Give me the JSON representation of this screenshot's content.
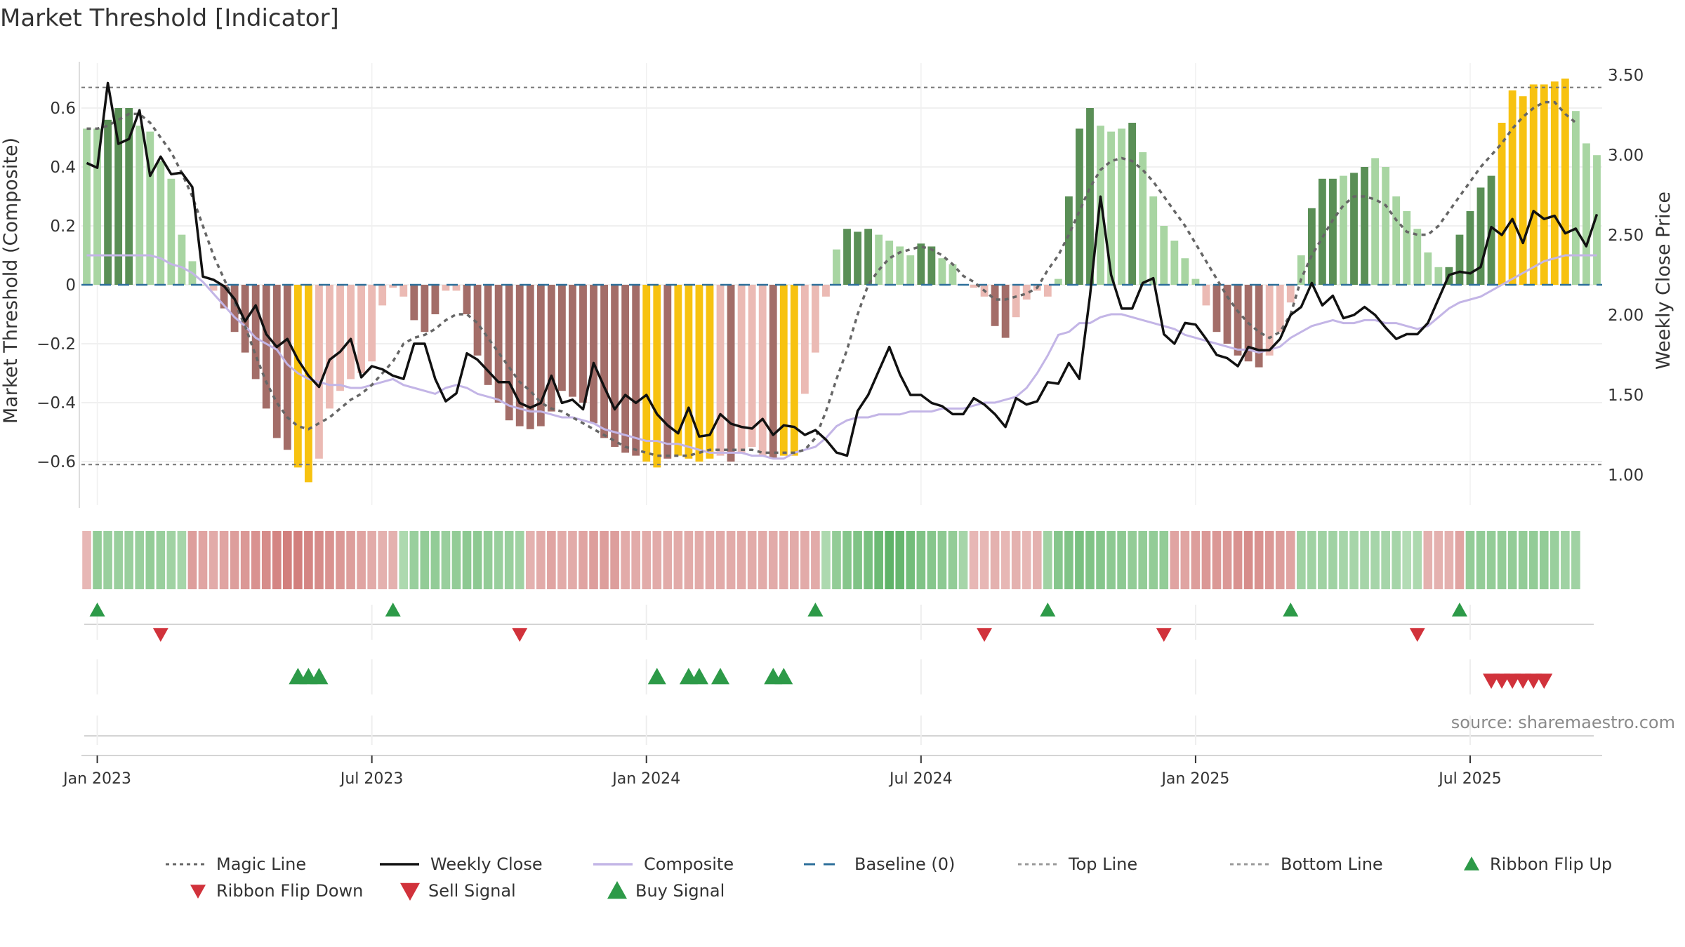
{
  "chart_data": {
    "type": "bar",
    "title": "Market Threshold [Indicator]",
    "ylabel": "Market Threshold (Composite)",
    "ylabel_right": "Weekly Close Price",
    "ylim": [
      -0.78,
      0.76
    ],
    "ylim_right": [
      0.85,
      3.6
    ],
    "yticks": [
      -0.6,
      -0.4,
      -0.2,
      0,
      0.2,
      0.4,
      0.6
    ],
    "ytick_labels": [
      "−0.6",
      "−0.4",
      "−0.2",
      "0",
      "0.2",
      "0.4",
      "0.6"
    ],
    "yticks_right": [
      1.0,
      1.5,
      2.0,
      2.5,
      3.0,
      3.5
    ],
    "ytick_labels_right": [
      "1.00",
      "1.50",
      "2.00",
      "2.50",
      "3.00",
      "3.50"
    ],
    "xtick_labels": [
      "Jan 2023",
      "Jul 2023",
      "Jan 2024",
      "Jul 2024",
      "Jan 2025",
      "Jul 2025"
    ],
    "xtick_weeks": [
      1,
      27,
      53,
      79,
      105,
      131
    ],
    "top_line": 0.67,
    "bottom_line": -0.61,
    "colors": {
      "bull_light": "#a8d5a2",
      "bull_dark": "#5a8f56",
      "bear_light": "#ebbab4",
      "bear_dark": "#a36d68",
      "extreme": "#f7c210",
      "weekly_close": "#111111",
      "composite": "#c3b5e6",
      "magic": "#666666",
      "baseline": "#2d6f9a",
      "signal_up": "#2d9a48",
      "signal_down": "#d1323b"
    },
    "composite_bars": [
      0.53,
      0.53,
      0.56,
      0.6,
      0.6,
      0.54,
      0.52,
      0.42,
      0.36,
      0.17,
      0.08,
      0,
      -0.02,
      -0.08,
      -0.16,
      -0.23,
      -0.32,
      -0.42,
      -0.52,
      -0.56,
      -0.62,
      -0.67,
      -0.59,
      -0.42,
      -0.36,
      -0.32,
      -0.3,
      -0.26,
      -0.07,
      -0.01,
      -0.04,
      -0.12,
      -0.16,
      -0.1,
      -0.02,
      -0.02,
      -0.1,
      -0.24,
      -0.34,
      -0.4,
      -0.46,
      -0.48,
      -0.49,
      -0.48,
      -0.43,
      -0.36,
      -0.38,
      -0.4,
      -0.47,
      -0.52,
      -0.55,
      -0.57,
      -0.58,
      -0.6,
      -0.62,
      -0.59,
      -0.58,
      -0.59,
      -0.6,
      -0.59,
      -0.58,
      -0.6,
      -0.57,
      -0.55,
      -0.58,
      -0.59,
      -0.58,
      -0.58,
      -0.37,
      -0.23,
      -0.04,
      0.12,
      0.19,
      0.18,
      0.19,
      0.17,
      0.15,
      0.13,
      0.1,
      0.14,
      0.13,
      0.09,
      0.07,
      0,
      -0.01,
      -0.04,
      -0.14,
      -0.18,
      -0.11,
      -0.05,
      -0.02,
      -0.04,
      0.02,
      0.3,
      0.53,
      0.6,
      0.54,
      0.52,
      0.53,
      0.55,
      0.45,
      0.3,
      0.2,
      0.15,
      0.09,
      0.02,
      -0.07,
      -0.16,
      -0.2,
      -0.24,
      -0.26,
      -0.28,
      -0.24,
      -0.16,
      -0.06,
      0.1,
      0.26,
      0.36,
      0.36,
      0.37,
      0.38,
      0.4,
      0.43,
      0.4,
      0.3,
      0.25,
      0.19,
      0.11,
      0.06,
      0.06,
      0.17,
      0.25,
      0.33,
      0.37,
      0.55,
      0.66,
      0.64,
      0.68,
      0.68,
      0.69,
      0.7,
      0.59,
      0.48,
      0.44
    ],
    "bar_classes": [
      "bl",
      "bl",
      "bd",
      "bd",
      "bd",
      "bl",
      "bl",
      "bl",
      "bl",
      "bl",
      "bl",
      "bl",
      "rl",
      "rd",
      "rd",
      "rd",
      "rd",
      "rd",
      "rd",
      "rd",
      "ex",
      "ex",
      "rl",
      "rl",
      "rl",
      "rl",
      "rl",
      "rl",
      "rl",
      "rl",
      "rl",
      "rd",
      "rd",
      "rd",
      "rl",
      "rl",
      "rd",
      "rd",
      "rd",
      "rd",
      "rd",
      "rd",
      "rd",
      "rd",
      "rd",
      "rd",
      "rd",
      "rd",
      "rd",
      "rd",
      "rd",
      "rd",
      "rd",
      "ex",
      "ex",
      "rd",
      "ex",
      "ex",
      "ex",
      "ex",
      "rl",
      "rd",
      "rl",
      "rl",
      "rl",
      "rd",
      "ex",
      "ex",
      "rl",
      "rl",
      "rl",
      "bl",
      "bd",
      "bd",
      "bd",
      "bl",
      "bl",
      "bl",
      "bl",
      "bd",
      "bd",
      "bl",
      "bl",
      "rl",
      "rl",
      "rl",
      "rd",
      "rd",
      "rl",
      "rl",
      "rl",
      "rl",
      "bl",
      "bd",
      "bd",
      "bd",
      "bl",
      "bl",
      "bl",
      "bd",
      "bl",
      "bl",
      "bl",
      "bl",
      "bl",
      "bl",
      "rl",
      "rd",
      "rd",
      "rd",
      "rd",
      "rd",
      "rl",
      "rl",
      "rl",
      "bl",
      "bd",
      "bd",
      "bd",
      "bl",
      "bd",
      "bd",
      "bl",
      "bl",
      "bl",
      "bl",
      "bl",
      "bl",
      "bl",
      "bd",
      "bd",
      "bd",
      "bd",
      "bd",
      "ex",
      "ex",
      "ex",
      "ex",
      "ex",
      "ex",
      "ex",
      "bl",
      "bl",
      "bl"
    ],
    "weekly_close": [
      2.95,
      2.92,
      3.45,
      3.07,
      3.1,
      3.28,
      2.87,
      2.99,
      2.88,
      2.89,
      2.8,
      2.24,
      2.22,
      2.18,
      2.1,
      1.96,
      2.06,
      1.88,
      1.8,
      1.85,
      1.72,
      1.62,
      1.55,
      1.72,
      1.77,
      1.85,
      1.61,
      1.68,
      1.66,
      1.62,
      1.6,
      1.82,
      1.82,
      1.6,
      1.46,
      1.51,
      1.76,
      1.72,
      1.65,
      1.58,
      1.58,
      1.45,
      1.42,
      1.45,
      1.62,
      1.45,
      1.47,
      1.41,
      1.7,
      1.55,
      1.41,
      1.5,
      1.45,
      1.5,
      1.38,
      1.31,
      1.26,
      1.42,
      1.24,
      1.25,
      1.38,
      1.32,
      1.3,
      1.29,
      1.35,
      1.25,
      1.31,
      1.3,
      1.25,
      1.28,
      1.22,
      1.14,
      1.12,
      1.4,
      1.5,
      1.65,
      1.8,
      1.63,
      1.5,
      1.5,
      1.45,
      1.43,
      1.38,
      1.38,
      1.48,
      1.44,
      1.38,
      1.3,
      1.48,
      1.44,
      1.46,
      1.58,
      1.57,
      1.7,
      1.6,
      2.12,
      2.74,
      2.25,
      2.04,
      2.04,
      2.2,
      2.23,
      1.88,
      1.82,
      1.95,
      1.94,
      1.85,
      1.75,
      1.73,
      1.68,
      1.8,
      1.78,
      1.78,
      1.85,
      2.0,
      2.05,
      2.2,
      2.06,
      2.12,
      1.98,
      2.0,
      2.05,
      2.0,
      1.92,
      1.85,
      1.88,
      1.88,
      1.95,
      2.1,
      2.25,
      2.27,
      2.26,
      2.3,
      2.55,
      2.5,
      2.6,
      2.45,
      2.65,
      2.6,
      2.62,
      2.51,
      2.54,
      2.43,
      2.63
    ],
    "composite_line": [
      0.1,
      0.1,
      0.1,
      0.1,
      0.1,
      0.1,
      0.1,
      0.09,
      0.07,
      0.06,
      0.04,
      0.01,
      -0.03,
      -0.07,
      -0.11,
      -0.14,
      -0.18,
      -0.2,
      -0.22,
      -0.27,
      -0.3,
      -0.32,
      -0.33,
      -0.34,
      -0.34,
      -0.35,
      -0.35,
      -0.34,
      -0.33,
      -0.32,
      -0.34,
      -0.35,
      -0.36,
      -0.37,
      -0.35,
      -0.34,
      -0.35,
      -0.37,
      -0.38,
      -0.39,
      -0.41,
      -0.42,
      -0.43,
      -0.43,
      -0.44,
      -0.45,
      -0.45,
      -0.46,
      -0.47,
      -0.49,
      -0.5,
      -0.51,
      -0.52,
      -0.53,
      -0.53,
      -0.54,
      -0.54,
      -0.55,
      -0.56,
      -0.57,
      -0.57,
      -0.57,
      -0.57,
      -0.58,
      -0.58,
      -0.59,
      -0.59,
      -0.57,
      -0.56,
      -0.55,
      -0.52,
      -0.48,
      -0.46,
      -0.45,
      -0.45,
      -0.44,
      -0.44,
      -0.44,
      -0.43,
      -0.43,
      -0.43,
      -0.42,
      -0.42,
      -0.42,
      -0.41,
      -0.4,
      -0.4,
      -0.39,
      -0.38,
      -0.35,
      -0.3,
      -0.24,
      -0.17,
      -0.16,
      -0.13,
      -0.13,
      -0.11,
      -0.1,
      -0.1,
      -0.11,
      -0.12,
      -0.13,
      -0.14,
      -0.15,
      -0.17,
      -0.18,
      -0.19,
      -0.2,
      -0.21,
      -0.22,
      -0.22,
      -0.23,
      -0.22,
      -0.21,
      -0.18,
      -0.16,
      -0.14,
      -0.13,
      -0.12,
      -0.13,
      -0.13,
      -0.12,
      -0.12,
      -0.13,
      -0.13,
      -0.14,
      -0.15,
      -0.14,
      -0.11,
      -0.08,
      -0.06,
      -0.05,
      -0.04,
      -0.02,
      0,
      0.02,
      0.04,
      0.06,
      0.08,
      0.09,
      0.1,
      0.1,
      0.1,
      0.1
    ],
    "magic_line": [
      0.53,
      0.53,
      0.54,
      0.56,
      0.58,
      0.58,
      0.55,
      0.5,
      0.45,
      0.38,
      0.3,
      0.2,
      0.1,
      0.02,
      -0.06,
      -0.14,
      -0.24,
      -0.33,
      -0.4,
      -0.45,
      -0.48,
      -0.49,
      -0.47,
      -0.45,
      -0.42,
      -0.39,
      -0.37,
      -0.34,
      -0.3,
      -0.26,
      -0.2,
      -0.18,
      -0.17,
      -0.15,
      -0.12,
      -0.1,
      -0.1,
      -0.13,
      -0.18,
      -0.23,
      -0.28,
      -0.33,
      -0.36,
      -0.4,
      -0.42,
      -0.43,
      -0.45,
      -0.47,
      -0.49,
      -0.51,
      -0.53,
      -0.55,
      -0.56,
      -0.57,
      -0.58,
      -0.58,
      -0.58,
      -0.58,
      -0.57,
      -0.56,
      -0.56,
      -0.56,
      -0.56,
      -0.56,
      -0.57,
      -0.57,
      -0.57,
      -0.57,
      -0.56,
      -0.52,
      -0.43,
      -0.32,
      -0.22,
      -0.1,
      0,
      0.05,
      0.09,
      0.11,
      0.12,
      0.13,
      0.12,
      0.1,
      0.07,
      0.03,
      0.01,
      -0.02,
      -0.05,
      -0.05,
      -0.04,
      -0.03,
      -0.01,
      0.05,
      0.1,
      0.17,
      0.25,
      0.33,
      0.39,
      0.42,
      0.43,
      0.42,
      0.39,
      0.35,
      0.3,
      0.25,
      0.2,
      0.14,
      0.08,
      0.02,
      -0.04,
      -0.09,
      -0.13,
      -0.16,
      -0.18,
      -0.16,
      -0.1,
      0.02,
      0.1,
      0.16,
      0.22,
      0.27,
      0.3,
      0.3,
      0.29,
      0.27,
      0.22,
      0.18,
      0.17,
      0.17,
      0.2,
      0.25,
      0.3,
      0.35,
      0.4,
      0.44,
      0.48,
      0.53,
      0.57,
      0.6,
      0.62,
      0.62,
      0.58,
      0.55
    ],
    "ribbon_intensity": [
      0.25,
      0.45,
      0.4,
      0.4,
      0.4,
      0.4,
      0.45,
      0.4,
      0.35,
      0.3,
      0.45,
      0.4,
      0.35,
      0.4,
      0.45,
      0.5,
      0.55,
      0.6,
      0.65,
      0.7,
      0.7,
      0.65,
      0.6,
      0.55,
      0.5,
      0.45,
      0.4,
      0.35,
      0.3,
      0.3,
      0.25,
      0.4,
      0.45,
      0.45,
      0.4,
      0.45,
      0.5,
      0.5,
      0.45,
      0.4,
      0.4,
      0.35,
      0.3,
      0.35,
      0.4,
      0.35,
      0.35,
      0.4,
      0.45,
      0.45,
      0.45,
      0.35,
      0.35,
      0.35,
      0.35,
      0.35,
      0.35,
      0.35,
      0.35,
      0.35,
      0.35,
      0.35,
      0.35,
      0.35,
      0.35,
      0.35,
      0.35,
      0.35,
      0.35,
      0.35,
      0.25,
      0.45,
      0.55,
      0.6,
      0.65,
      0.75,
      0.85,
      0.8,
      0.7,
      0.6,
      0.55,
      0.5,
      0.45,
      0.3,
      0.25,
      0.25,
      0.3,
      0.25,
      0.3,
      0.25,
      0.3,
      0.35,
      0.55,
      0.6,
      0.65,
      0.6,
      0.55,
      0.5,
      0.5,
      0.45,
      0.45,
      0.45,
      0.45,
      0.4,
      0.4,
      0.45,
      0.5,
      0.5,
      0.5,
      0.55,
      0.6,
      0.55,
      0.5,
      0.45,
      0.4,
      0.35,
      0.35,
      0.35,
      0.35,
      0.3,
      0.3,
      0.3,
      0.3,
      0.3,
      0.3,
      0.2,
      0.25,
      0.3,
      0.3,
      0.3,
      0.4,
      0.45,
      0.45,
      0.45,
      0.45,
      0.45,
      0.45,
      0.45,
      0.45,
      0.4,
      0.35,
      0.35
    ],
    "ribbon_sign": [
      -1,
      1,
      1,
      1,
      1,
      1,
      1,
      1,
      1,
      1,
      -1,
      -1,
      -1,
      -1,
      -1,
      -1,
      -1,
      -1,
      -1,
      -1,
      -1,
      -1,
      -1,
      -1,
      -1,
      -1,
      -1,
      -1,
      -1,
      -1,
      1,
      1,
      1,
      1,
      1,
      1,
      1,
      1,
      1,
      1,
      1,
      1,
      -1,
      -1,
      -1,
      -1,
      -1,
      -1,
      -1,
      -1,
      -1,
      -1,
      -1,
      -1,
      -1,
      -1,
      -1,
      -1,
      -1,
      -1,
      -1,
      -1,
      -1,
      -1,
      -1,
      -1,
      -1,
      -1,
      -1,
      -1,
      1,
      1,
      1,
      1,
      1,
      1,
      1,
      1,
      1,
      1,
      1,
      1,
      1,
      1,
      -1,
      -1,
      -1,
      -1,
      -1,
      -1,
      -1,
      1,
      1,
      1,
      1,
      1,
      1,
      1,
      1,
      1,
      1,
      1,
      1,
      -1,
      -1,
      -1,
      -1,
      -1,
      -1,
      -1,
      -1,
      -1,
      -1,
      -1,
      -1,
      1,
      1,
      1,
      1,
      1,
      1,
      1,
      1,
      1,
      1,
      1,
      1,
      -1,
      -1,
      -1,
      -1,
      1,
      1,
      1,
      1,
      1,
      1,
      1,
      1,
      1,
      1,
      1,
      1,
      1,
      1
    ],
    "ribbon_flip_up": [
      1,
      29,
      69,
      91,
      114,
      130
    ],
    "ribbon_flip_down": [
      7,
      41,
      85,
      102,
      126
    ],
    "buy_signals": [
      20,
      21,
      22,
      54,
      57,
      58,
      60,
      65,
      66
    ],
    "sell_signals": [
      133,
      134,
      135,
      136,
      137,
      138
    ],
    "legend": [
      "Magic Line",
      "Weekly Close",
      "Composite",
      "Baseline (0)",
      "Top Line",
      "Bottom Line",
      "Ribbon Flip Up",
      "Ribbon Flip Down",
      "Sell Signal",
      "Buy Signal"
    ]
  },
  "source": "source: sharemaestro.com"
}
